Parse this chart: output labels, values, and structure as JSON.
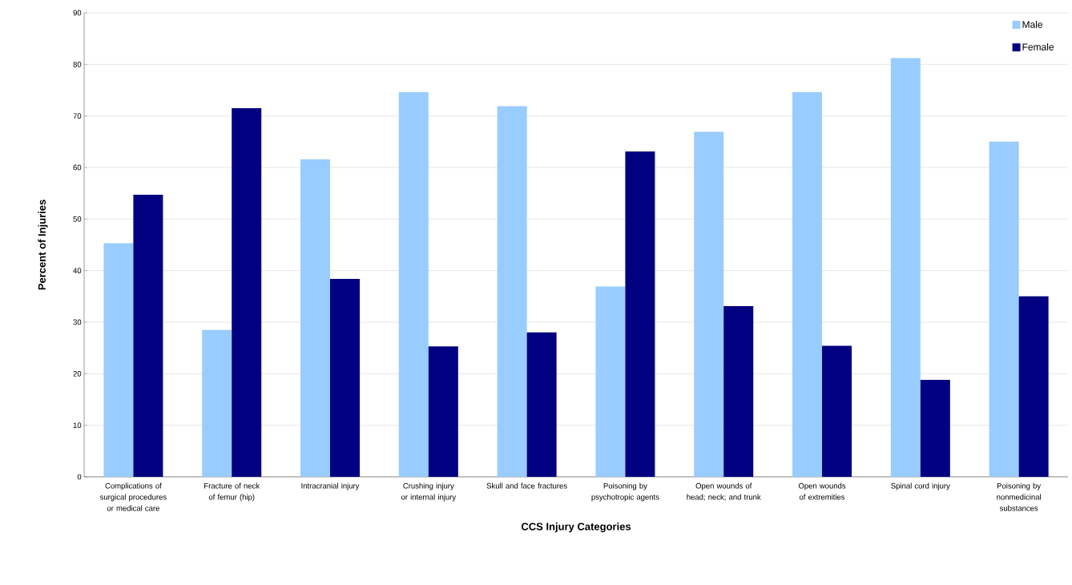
{
  "chart_data": {
    "type": "bar",
    "xlabel": "CCS Injury Categories",
    "ylabel": "Percent of Injuries",
    "categories": [
      "Complications of surgical procedures or medical care",
      "Fracture of neck of femur (hip)",
      "Intracranial injury",
      "Crushing injury or internal injury",
      "Skull and face fractures",
      "Poisoning by psychotropic agents",
      "Open wounds of head; neck; and trunk",
      "Open wounds of extremities",
      "Spinal cord injury",
      "Poisoning by nonmedicinal substances"
    ],
    "series": [
      {
        "name": "Male",
        "color": "#99ccff",
        "values": [
          45.3,
          28.5,
          61.6,
          74.6,
          71.9,
          36.9,
          66.9,
          74.6,
          81.2,
          65.0
        ]
      },
      {
        "name": "Female",
        "color": "#000080",
        "values": [
          54.7,
          71.5,
          38.4,
          25.3,
          28.0,
          63.1,
          33.1,
          25.4,
          18.8,
          35.0
        ]
      }
    ],
    "ylim": [
      0,
      90
    ],
    "yticks": [
      0,
      10,
      20,
      30,
      40,
      50,
      60,
      70,
      80,
      90
    ],
    "grid": "y",
    "legend": "top right"
  }
}
